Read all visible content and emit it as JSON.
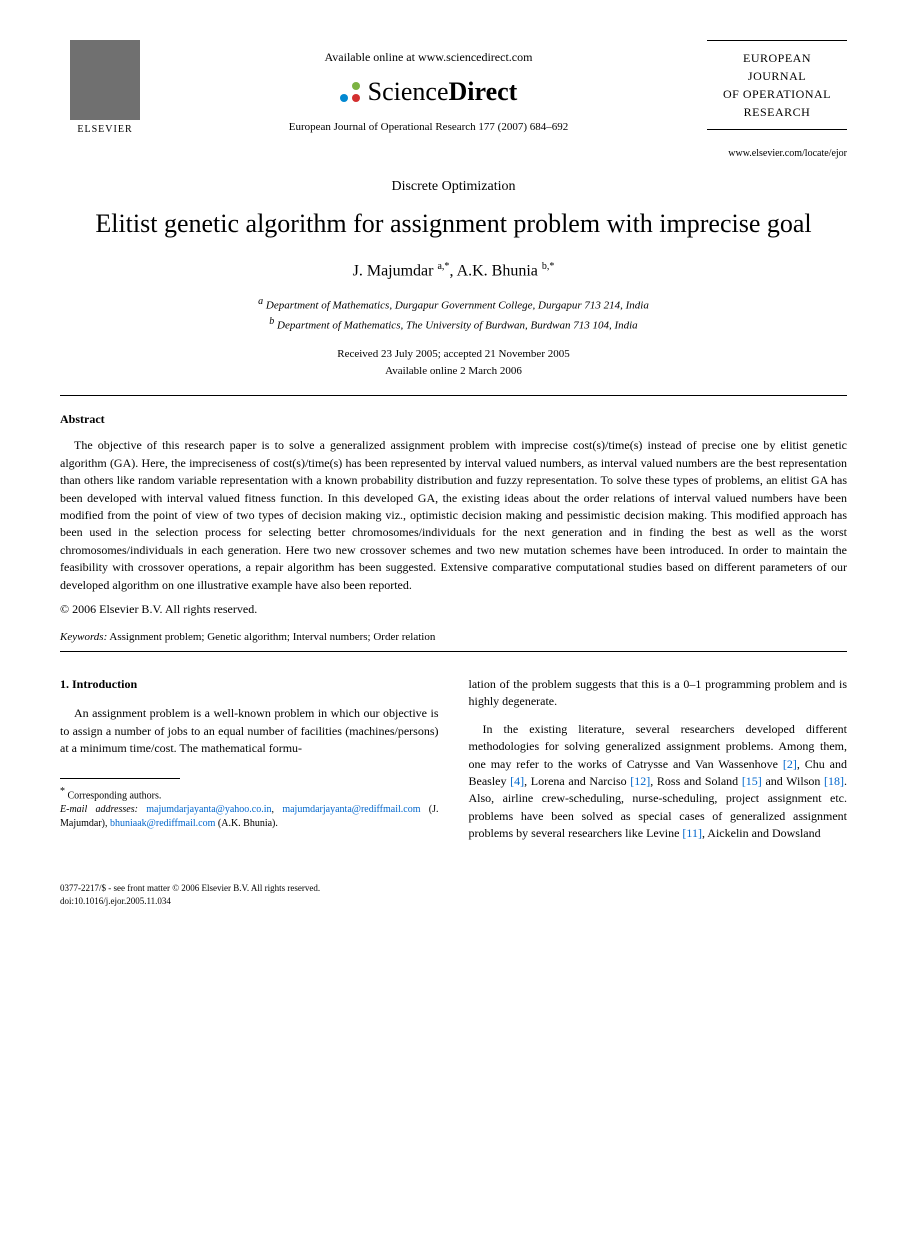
{
  "header": {
    "available_text": "Available online at www.sciencedirect.com",
    "sd_brand_left": "Science",
    "sd_brand_right": "Direct",
    "sd_dot_colors": [
      "#f5a623",
      "#7cb342",
      "#0288d1",
      "#d32f2f"
    ],
    "elsevier_label": "ELSEVIER",
    "journal_ref": "European Journal of Operational Research 177 (2007) 684–692",
    "journal_box_lines": [
      "EUROPEAN",
      "JOURNAL",
      "OF OPERATIONAL",
      "RESEARCH"
    ],
    "journal_url": "www.elsevier.com/locate/ejor"
  },
  "article": {
    "section_label": "Discrete Optimization",
    "title": "Elitist genetic algorithm for assignment problem with imprecise goal",
    "authors": [
      {
        "name": "J. Majumdar",
        "sup": "a,*"
      },
      {
        "name": "A.K. Bhunia",
        "sup": "b,*"
      }
    ],
    "affiliations": [
      {
        "sup": "a",
        "text": "Department of Mathematics, Durgapur Government College, Durgapur 713 214, India"
      },
      {
        "sup": "b",
        "text": "Department of Mathematics, The University of Burdwan, Burdwan 713 104, India"
      }
    ],
    "dates": {
      "received": "Received 23 July 2005; accepted 21 November 2005",
      "online": "Available online 2 March 2006"
    }
  },
  "abstract": {
    "heading": "Abstract",
    "body": "The objective of this research paper is to solve a generalized assignment problem with imprecise cost(s)/time(s) instead of precise one by elitist genetic algorithm (GA). Here, the impreciseness of cost(s)/time(s) has been represented by interval valued numbers, as interval valued numbers are the best representation than others like random variable representation with a known probability distribution and fuzzy representation. To solve these types of problems, an elitist GA has been developed with interval valued fitness function. In this developed GA, the existing ideas about the order relations of interval valued numbers have been modified from the point of view of two types of decision making viz., optimistic decision making and pessimistic decision making. This modified approach has been used in the selection process for selecting better chromosomes/individuals for the next generation and in finding the best as well as the worst chromosomes/individuals in each generation. Here two new crossover schemes and two new mutation schemes have been introduced. In order to maintain the feasibility with crossover operations, a repair algorithm has been suggested. Extensive comparative computational studies based on different parameters of our developed algorithm on one illustrative example have also been reported.",
    "copyright": "© 2006 Elsevier B.V. All rights reserved."
  },
  "keywords": {
    "label": "Keywords:",
    "text": "Assignment problem; Genetic algorithm; Interval numbers; Order relation"
  },
  "intro": {
    "heading": "1. Introduction",
    "para1": "An assignment problem is a well-known problem in which our objective is to assign a number of jobs to an equal number of facilities (machines/persons) at a minimum time/cost. The mathematical formu-",
    "para1_cont": "lation of the problem suggests that this is a 0–1 programming problem and is highly degenerate.",
    "para2_pre": "In the existing literature, several researchers developed different methodologies for solving generalized assignment problems. Among them, one may refer to the works of Catrysse and Van Wassenhove ",
    "ref2": "[2]",
    "para2_mid1": ", Chu and Beasley ",
    "ref4": "[4]",
    "para2_mid2": ", Lorena and Narciso ",
    "ref12": "[12]",
    "para2_mid3": ", Ross and Soland ",
    "ref15": "[15]",
    "para2_mid4": " and Wilson ",
    "ref18": "[18]",
    "para2_mid5": ". Also, airline crew-scheduling, nurse-scheduling, project assignment etc. problems have been solved as special cases of generalized assignment problems by several researchers like Levine ",
    "ref11": "[11]",
    "para2_end": ", Aickelin and Dowsland"
  },
  "footnote": {
    "corr": "Corresponding authors.",
    "email_label": "E-mail addresses:",
    "email1": "majumdarjayanta@yahoo.co.in",
    "email2": "majumdarjayanta@rediffmail.com",
    "email1_name": "(J. Majumdar),",
    "email3": "bhuniaak@rediffmail.com",
    "email3_name": "(A.K. Bhunia)."
  },
  "footer": {
    "line1": "0377-2217/$ - see front matter © 2006 Elsevier B.V. All rights reserved.",
    "line2": "doi:10.1016/j.ejor.2005.11.034"
  }
}
